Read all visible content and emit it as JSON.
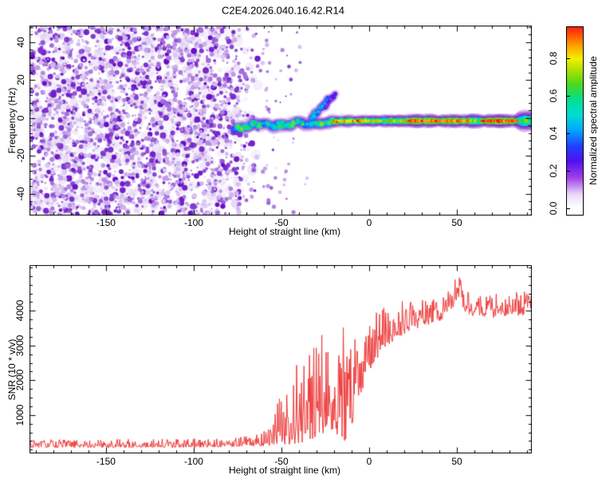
{
  "title": "C2E4.2026.040.16.42.R14",
  "chart_data": [
    {
      "type": "heatmap",
      "title": "",
      "xlabel": "Height of straight line (km)",
      "ylabel": "Frequency (Hz)",
      "xlim": [
        -193.6,
        92.7
      ],
      "ylim": [
        -51.4,
        48.8
      ],
      "grid": false,
      "x_ticks": {
        "values": [
          -150,
          -100,
          -50,
          0,
          50
        ],
        "labels": [
          "-150",
          "-100",
          "-50",
          "0",
          "50"
        ],
        "minor_step": 10
      },
      "y_ticks": {
        "values": [
          -40,
          -20,
          0,
          20,
          40
        ],
        "labels": [
          "-40",
          "-20",
          "0",
          "20",
          "40"
        ],
        "minor_step": 4
      },
      "colorbar": {
        "label": "Normalized spectral amplitude",
        "tick_values": [
          0,
          0.2,
          0.4,
          0.6,
          0.8
        ],
        "tick_labels": [
          "0.0",
          "0.2",
          "0.4",
          "0.6",
          "0.8"
        ],
        "range": [
          0,
          1
        ]
      },
      "colormap_stops": [
        [
          0.0,
          "#ffffff"
        ],
        [
          0.07,
          "#ead9f8"
        ],
        [
          0.16,
          "#a040e8"
        ],
        [
          0.25,
          "#5010f0"
        ],
        [
          0.33,
          "#2040ff"
        ],
        [
          0.42,
          "#00aaff"
        ],
        [
          0.5,
          "#00dcd0"
        ],
        [
          0.58,
          "#00e090"
        ],
        [
          0.66,
          "#48d820"
        ],
        [
          0.74,
          "#b0e000"
        ],
        [
          0.8,
          "#f0f000"
        ],
        [
          0.87,
          "#ffa000"
        ],
        [
          0.93,
          "#ff5000"
        ],
        [
          1.0,
          "#f70028"
        ]
      ],
      "noise_field": {
        "x_range": [
          -193.6,
          -62
        ],
        "fade_start": -82,
        "sparse_until": -34,
        "speckle_color_light": "#ddc9f3",
        "speckle_color_dark": "#660dc4",
        "description": "dense violet speckle noise covering all frequencies left of -80 km, fading out by about -62 km"
      },
      "trace_segments": [
        {
          "h0": -77,
          "h1": -35,
          "f0": -4.8,
          "f1": -2.2,
          "fj": 1.4,
          "a0": 0.35,
          "a1": 0.72,
          "r": 3.4,
          "step": 1.1
        },
        {
          "h0": -33.5,
          "h1": -20,
          "f0": -3.2,
          "f1": -1.8,
          "fj": 0.7,
          "a0": 0.45,
          "a1": 0.8,
          "r": 3.3,
          "step": 0.9
        },
        {
          "h0": -20,
          "h1": -2,
          "f0": -1.8,
          "f1": -1.5,
          "fj": 0.25,
          "a0": 0.7,
          "a1": 1.0,
          "r": 3.2,
          "step": 0.6
        },
        {
          "h0": -2,
          "h1": 22,
          "f0": -1.5,
          "f1": -1.5,
          "fj": 0.15,
          "a0": 0.55,
          "a1": 0.9,
          "r": 3.2,
          "step": 0.55
        },
        {
          "h0": 22,
          "h1": 58,
          "f0": -1.5,
          "f1": -1.5,
          "fj": 0.1,
          "a0": 0.82,
          "a1": 1.0,
          "r": 3.3,
          "step": 0.5
        },
        {
          "h0": 58,
          "h1": 64,
          "f0": -1.5,
          "f1": -1.5,
          "fj": 0.1,
          "a0": 0.6,
          "a1": 0.78,
          "r": 3.5,
          "step": 0.5
        },
        {
          "h0": 64,
          "h1": 86,
          "f0": -1.5,
          "f1": -1.5,
          "fj": 0.1,
          "a0": 0.85,
          "a1": 1.0,
          "r": 3.3,
          "step": 0.5
        },
        {
          "h0": 86,
          "h1": 92.5,
          "f0": -1.5,
          "f1": -1.5,
          "fj": 0.2,
          "a0": 0.55,
          "a1": 0.72,
          "r": 5,
          "step": 0.5
        },
        {
          "h0": -33,
          "h1": -23,
          "f0": -0.5,
          "f1": 10.5,
          "fj": 0.8,
          "a0": 0.3,
          "a1": 0.55,
          "r": 2.8,
          "step": 0.8
        },
        {
          "h0": -25,
          "h1": -19,
          "f0": 6,
          "f1": 13,
          "fj": 0.8,
          "a0": 0.15,
          "a1": 0.3,
          "r": 2.5,
          "step": 0.8
        }
      ],
      "trace_description": "occultation signal near 0 Hz: weak blobby trace from -77 to -35 km around -4 Hz, diagonal multipath streak rising to +13 Hz near -25 km, strong narrow line at about -1.5 Hz from -20 to 93 km with red (amplitude ~1) core"
    },
    {
      "type": "line",
      "title": "",
      "xlabel": "Height of straight line (km)",
      "ylabel": "SNR (10 * v/v)",
      "xlim": [
        -193.6,
        92.7
      ],
      "ylim": [
        -108,
        5317
      ],
      "grid": false,
      "x_ticks": {
        "values": [
          -150,
          -100,
          -50,
          0,
          50
        ],
        "labels": [
          "-150",
          "-100",
          "-50",
          "0",
          "50"
        ],
        "minor_step": 10
      },
      "y_ticks": {
        "values": [
          1000,
          2000,
          3000,
          4000
        ],
        "labels": [
          "1000",
          "2000",
          "3000",
          "4000"
        ],
        "minor_step": 250
      },
      "line_color": "#ee3a3a",
      "envelope": [
        [
          -193.6,
          60,
          300
        ],
        [
          -160,
          60,
          300
        ],
        [
          -130,
          60,
          310
        ],
        [
          -105,
          70,
          320
        ],
        [
          -90,
          70,
          330
        ],
        [
          -80,
          80,
          350
        ],
        [
          -73,
          90,
          420
        ],
        [
          -66,
          100,
          480
        ],
        [
          -60,
          110,
          650
        ],
        [
          -55,
          130,
          950
        ],
        [
          -51,
          150,
          1550
        ],
        [
          -48,
          140,
          1150
        ],
        [
          -45,
          130,
          2700
        ],
        [
          -42,
          160,
          3450
        ],
        [
          -39,
          200,
          2300
        ],
        [
          -36,
          250,
          3300
        ],
        [
          -33,
          300,
          2600
        ],
        [
          -30,
          350,
          3900
        ],
        [
          -28,
          400,
          3000
        ],
        [
          -26,
          450,
          4400
        ],
        [
          -24,
          500,
          3200
        ],
        [
          -22,
          600,
          2900
        ],
        [
          -20,
          520,
          3300
        ],
        [
          -18,
          420,
          2700
        ],
        [
          -16,
          320,
          3200
        ],
        [
          -14,
          260,
          3800
        ],
        [
          -12,
          380,
          3000
        ],
        [
          -10,
          700,
          3500
        ],
        [
          -8,
          1000,
          3250
        ],
        [
          -6,
          1400,
          3600
        ],
        [
          -4,
          1700,
          3350
        ],
        [
          -2,
          2000,
          3700
        ],
        [
          0,
          2250,
          3550
        ],
        [
          2,
          2450,
          3800
        ],
        [
          4,
          2600,
          4000
        ],
        [
          6,
          2700,
          3900
        ],
        [
          8,
          2800,
          4100
        ],
        [
          10,
          3000,
          4050
        ],
        [
          13,
          3100,
          4200
        ],
        [
          16,
          3200,
          4100
        ],
        [
          19,
          3300,
          4300
        ],
        [
          22,
          3400,
          4200
        ],
        [
          25,
          3500,
          4300
        ],
        [
          28,
          3500,
          4250
        ],
        [
          31,
          3600,
          4400
        ],
        [
          34,
          3600,
          4300
        ],
        [
          37,
          3700,
          4400
        ],
        [
          40,
          3700,
          4350
        ],
        [
          43,
          3800,
          4500
        ],
        [
          46,
          3950,
          4700
        ],
        [
          49,
          4200,
          5000
        ],
        [
          51,
          4250,
          5050
        ],
        [
          53,
          4100,
          4800
        ],
        [
          56,
          3900,
          4550
        ],
        [
          59,
          3800,
          4450
        ],
        [
          62,
          3900,
          4500
        ],
        [
          65,
          3800,
          4350
        ],
        [
          68,
          3900,
          4500
        ],
        [
          71,
          3800,
          4400
        ],
        [
          74,
          3900,
          4600
        ],
        [
          77,
          3800,
          4400
        ],
        [
          80,
          3900,
          4500
        ],
        [
          83,
          3800,
          4600
        ],
        [
          86,
          3900,
          4500
        ],
        [
          89,
          3800,
          4600
        ],
        [
          92.7,
          4000,
          4700
        ]
      ],
      "description": "noise floor ~60-300 below -75 km, spiky transition between -55 and -10 km, plateau ~3500-4700 above +10 km peaking near 5000 around +50 km"
    }
  ]
}
